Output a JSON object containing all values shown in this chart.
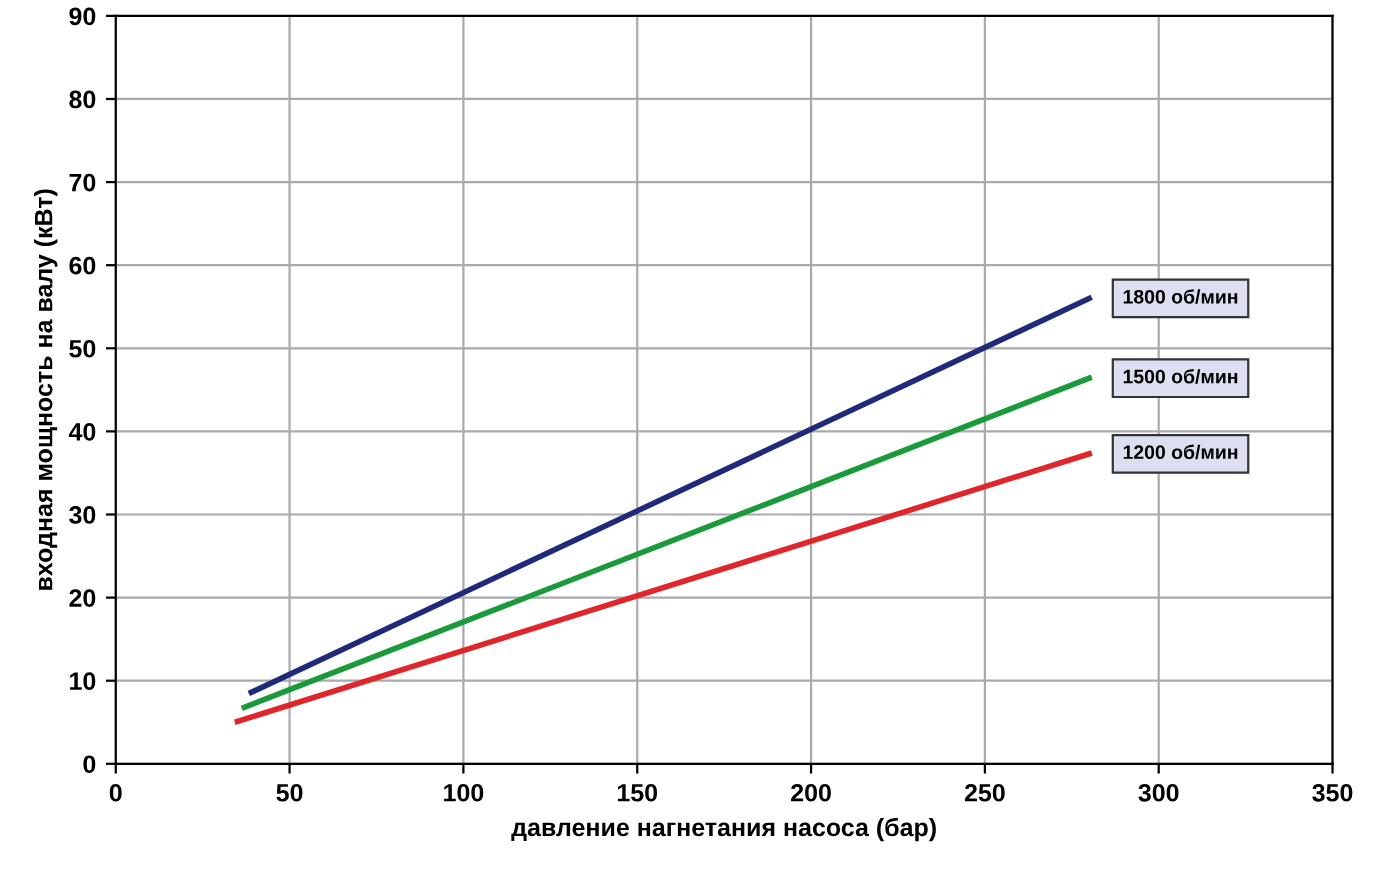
{
  "chart_data": {
    "type": "line",
    "xlabel": "давление нагнетания насоса (бар)",
    "ylabel": "входная мощность на валу (кВт)",
    "xlim": [
      0,
      350
    ],
    "ylim": [
      0,
      90
    ],
    "xticks": [
      0,
      50,
      100,
      150,
      200,
      250,
      300,
      350
    ],
    "yticks": [
      0,
      10,
      20,
      30,
      40,
      50,
      60,
      70,
      80,
      90
    ],
    "grid": true,
    "legend": false,
    "marker": "none",
    "line_style": "solid",
    "series": [
      {
        "name": "1800 об/мин",
        "color": "#1f2a7a",
        "x": [
          39,
          280
        ],
        "values": [
          8.6,
          56
        ]
      },
      {
        "name": "1500 об/мин",
        "color": "#1a9a3a",
        "x": [
          37,
          280
        ],
        "values": [
          6.8,
          46.4
        ]
      },
      {
        "name": "1200 об/мин",
        "color": "#e0262a",
        "x": [
          35,
          280
        ],
        "values": [
          5.1,
          37.3
        ]
      }
    ]
  }
}
